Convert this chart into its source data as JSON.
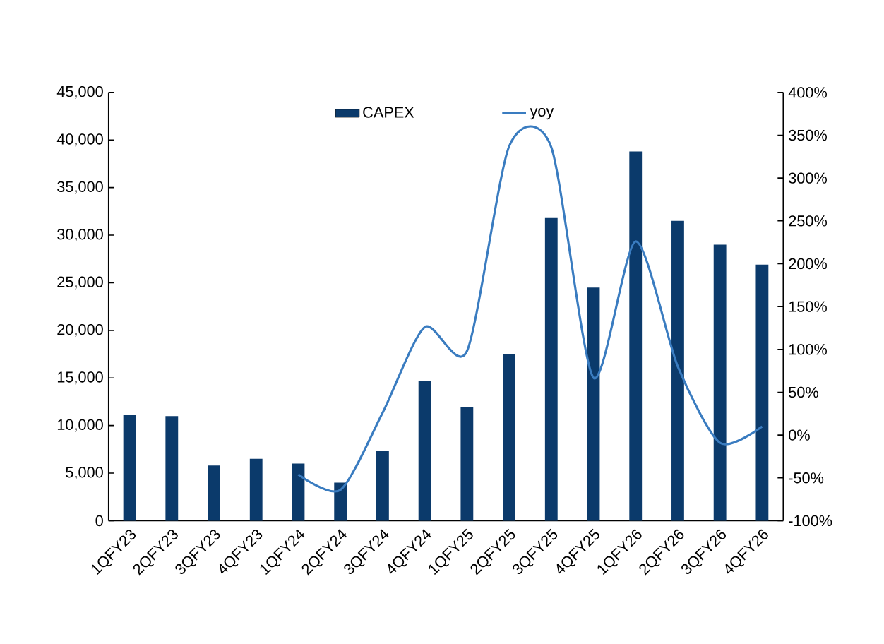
{
  "chart_data": {
    "type": "bar",
    "categories": [
      "1QFY23",
      "2QFY23",
      "3QFY23",
      "4QFY23",
      "1QFY24",
      "2QFY24",
      "3QFY24",
      "4QFY24",
      "1QFY25",
      "2QFY25",
      "3QFY25",
      "4QFY25",
      "1QFY26",
      "2QFY26",
      "3QFY26",
      "4QFY26"
    ],
    "series": [
      {
        "name": "CAPEX",
        "color": "#0b3a6b",
        "values": [
          11100,
          11000,
          5800,
          6500,
          6000,
          4000,
          7300,
          14700,
          11900,
          17500,
          31800,
          24500,
          38800,
          31500,
          29000,
          26900
        ]
      },
      {
        "name": "yoy",
        "type": "line",
        "axis": "y2",
        "color": "#3a7cc0",
        "values": [
          null,
          null,
          null,
          null,
          -46,
          -64,
          26,
          126,
          98,
          337,
          336,
          67,
          226,
          80,
          -9,
          10
        ]
      }
    ],
    "ylim": [
      0,
      45000
    ],
    "yticks": [
      0,
      {
        "value": 5000,
        "label": "5,000"
      },
      {
        "value": 10000,
        "label": "10,000"
      },
      {
        "value": 15000,
        "label": "15,000"
      },
      {
        "value": 20000,
        "label": "20,000"
      },
      {
        "value": 25000,
        "label": "25,000"
      },
      {
        "value": 30000,
        "label": "30,000"
      },
      {
        "value": 35000,
        "label": "35,000"
      },
      {
        "value": 40000,
        "label": "40,000"
      },
      {
        "value": 45000,
        "label": "45,000"
      }
    ],
    "y2lim": [
      -100,
      400
    ],
    "y2ticks": [
      {
        "value": -100,
        "label": "-100%"
      },
      {
        "value": -50,
        "label": "-50%"
      },
      {
        "value": 0,
        "label": "0%"
      },
      {
        "value": 50,
        "label": "50%"
      },
      {
        "value": 100,
        "label": "100%"
      },
      {
        "value": 150,
        "label": "150%"
      },
      {
        "value": 200,
        "label": "200%"
      },
      {
        "value": 250,
        "label": "250%"
      },
      {
        "value": 300,
        "label": "300%"
      },
      {
        "value": 350,
        "label": "350%"
      },
      {
        "value": 400,
        "label": "400%"
      }
    ],
    "legend": "top",
    "grid": false
  }
}
